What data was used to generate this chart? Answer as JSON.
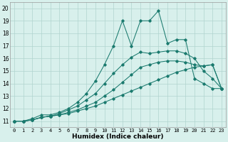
{
  "xlabel": "Humidex (Indice chaleur)",
  "xlim": [
    -0.5,
    23.5
  ],
  "ylim": [
    10.5,
    20.5
  ],
  "xticks": [
    0,
    1,
    2,
    3,
    4,
    5,
    6,
    7,
    8,
    9,
    10,
    11,
    12,
    13,
    14,
    15,
    16,
    17,
    18,
    19,
    20,
    21,
    22,
    23
  ],
  "yticks": [
    11,
    12,
    13,
    14,
    15,
    16,
    17,
    18,
    19,
    20
  ],
  "bg_color": "#d8f0ec",
  "grid_color": "#b0d4ce",
  "line_color": "#1a7a6e",
  "lines": [
    {
      "x": [
        0,
        1,
        2,
        3,
        4,
        5,
        6,
        7,
        8,
        9,
        10,
        11,
        12,
        13,
        14,
        15,
        16,
        17,
        18,
        19,
        20,
        21,
        22,
        23
      ],
      "y": [
        11,
        11,
        11.1,
        11.3,
        11.4,
        11.5,
        11.6,
        11.8,
        12.0,
        12.2,
        12.5,
        12.8,
        13.1,
        13.4,
        13.7,
        14.0,
        14.3,
        14.6,
        14.9,
        15.1,
        15.3,
        15.4,
        15.5,
        13.6
      ]
    },
    {
      "x": [
        0,
        1,
        2,
        3,
        4,
        5,
        6,
        7,
        8,
        9,
        10,
        11,
        12,
        13,
        14,
        15,
        16,
        17,
        18,
        19,
        20,
        21,
        22,
        23
      ],
      "y": [
        11,
        11,
        11.1,
        11.3,
        11.4,
        11.5,
        11.7,
        11.9,
        12.2,
        12.5,
        13.0,
        13.5,
        14.1,
        14.7,
        15.3,
        15.5,
        15.7,
        15.8,
        15.8,
        15.7,
        15.5,
        15.4,
        15.5,
        13.6
      ]
    },
    {
      "x": [
        0,
        1,
        2,
        3,
        4,
        5,
        6,
        7,
        8,
        9,
        10,
        11,
        12,
        13,
        14,
        15,
        16,
        17,
        18,
        19,
        20,
        21,
        22,
        23
      ],
      "y": [
        11,
        11,
        11.1,
        11.3,
        11.4,
        11.6,
        11.9,
        12.2,
        12.7,
        13.2,
        14.0,
        14.8,
        15.5,
        16.1,
        16.5,
        16.4,
        16.5,
        16.6,
        16.6,
        16.4,
        16.0,
        15.0,
        14.4,
        13.6
      ]
    },
    {
      "x": [
        0,
        1,
        2,
        3,
        4,
        5,
        6,
        7,
        8,
        9,
        10,
        11,
        12,
        13,
        14,
        15,
        16,
        17,
        18,
        19,
        20,
        21,
        22,
        23
      ],
      "y": [
        11,
        11,
        11.2,
        11.5,
        11.5,
        11.7,
        12.0,
        12.5,
        13.2,
        14.2,
        15.5,
        17.0,
        19.0,
        17.0,
        19.0,
        19.0,
        19.8,
        17.2,
        17.5,
        17.5,
        14.4,
        14.0,
        13.6,
        13.6
      ]
    }
  ]
}
